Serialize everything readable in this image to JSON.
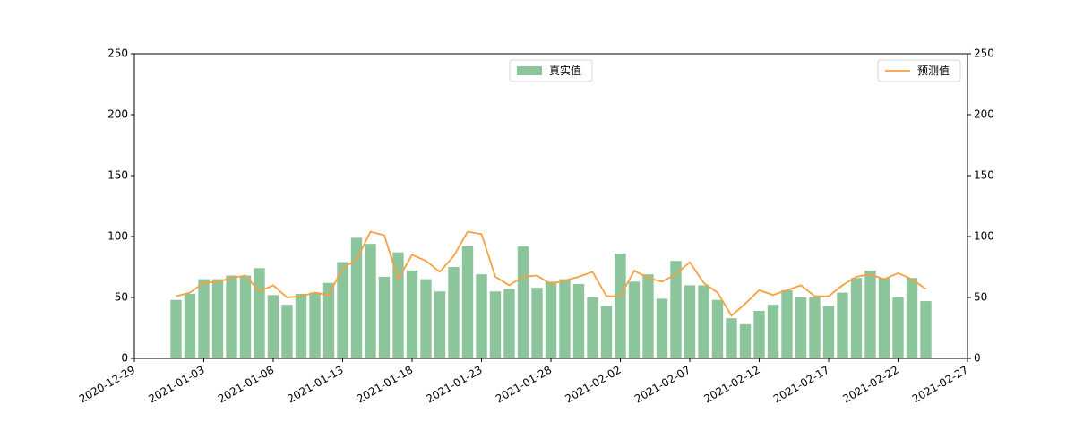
{
  "chart_data": {
    "type": "bar+line",
    "x": [
      "2021-01-01",
      "2021-01-02",
      "2021-01-03",
      "2021-01-04",
      "2021-01-05",
      "2021-01-06",
      "2021-01-07",
      "2021-01-08",
      "2021-01-09",
      "2021-01-10",
      "2021-01-11",
      "2021-01-12",
      "2021-01-13",
      "2021-01-14",
      "2021-01-15",
      "2021-01-16",
      "2021-01-17",
      "2021-01-18",
      "2021-01-19",
      "2021-01-20",
      "2021-01-21",
      "2021-01-22",
      "2021-01-23",
      "2021-01-24",
      "2021-01-25",
      "2021-01-26",
      "2021-01-27",
      "2021-01-28",
      "2021-01-29",
      "2021-01-30",
      "2021-01-31",
      "2021-02-01",
      "2021-02-02",
      "2021-02-03",
      "2021-02-04",
      "2021-02-05",
      "2021-02-06",
      "2021-02-07",
      "2021-02-08",
      "2021-02-09",
      "2021-02-10",
      "2021-02-11",
      "2021-02-12",
      "2021-02-13",
      "2021-02-14",
      "2021-02-15",
      "2021-02-16",
      "2021-02-17",
      "2021-02-18",
      "2021-02-19",
      "2021-02-20",
      "2021-02-21",
      "2021-02-22",
      "2021-02-23",
      "2021-02-24"
    ],
    "series": [
      {
        "name": "真实值",
        "kind": "bar",
        "color": "#8cc49b",
        "axis": "y",
        "legend": "upper center",
        "values": [
          48,
          53,
          65,
          65,
          68,
          68,
          74,
          52,
          44,
          53,
          54,
          62,
          79,
          99,
          94,
          67,
          87,
          72,
          65,
          55,
          75,
          92,
          69,
          55,
          57,
          92,
          58,
          63,
          65,
          61,
          50,
          43,
          86,
          63,
          69,
          49,
          80,
          60,
          60,
          48,
          33,
          28,
          39,
          44,
          56,
          50,
          50,
          43,
          54,
          66,
          72,
          66,
          50,
          66,
          47
        ]
      },
      {
        "name": "预测值",
        "kind": "line",
        "color": "#f5a142",
        "axis": "y2",
        "legend": "upper right",
        "values": [
          51,
          54,
          62,
          63,
          66,
          68,
          55,
          60,
          50,
          51,
          54,
          52,
          74,
          81,
          104,
          101,
          65,
          85,
          80,
          71,
          84,
          104,
          102,
          67,
          60,
          67,
          68,
          61,
          64,
          67,
          71,
          51,
          51,
          72,
          66,
          63,
          69,
          79,
          62,
          54,
          35,
          45,
          56,
          52,
          56,
          60,
          51,
          51,
          60,
          67,
          69,
          65,
          70,
          65,
          57
        ]
      }
    ],
    "xlim": [
      "2020-12-29",
      "2021-02-27"
    ],
    "xticks": [
      "2020-12-29",
      "2021-01-03",
      "2021-01-08",
      "2021-01-13",
      "2021-01-18",
      "2021-01-23",
      "2021-01-28",
      "2021-02-02",
      "2021-02-07",
      "2021-02-12",
      "2021-02-17",
      "2021-02-22",
      "2021-02-27"
    ],
    "ylim": [
      0,
      250
    ],
    "yticks": [
      0,
      50,
      100,
      150,
      200,
      250
    ],
    "y2lim": [
      0,
      250
    ],
    "y2ticks": [
      0,
      50,
      100,
      150,
      200,
      250
    ]
  }
}
